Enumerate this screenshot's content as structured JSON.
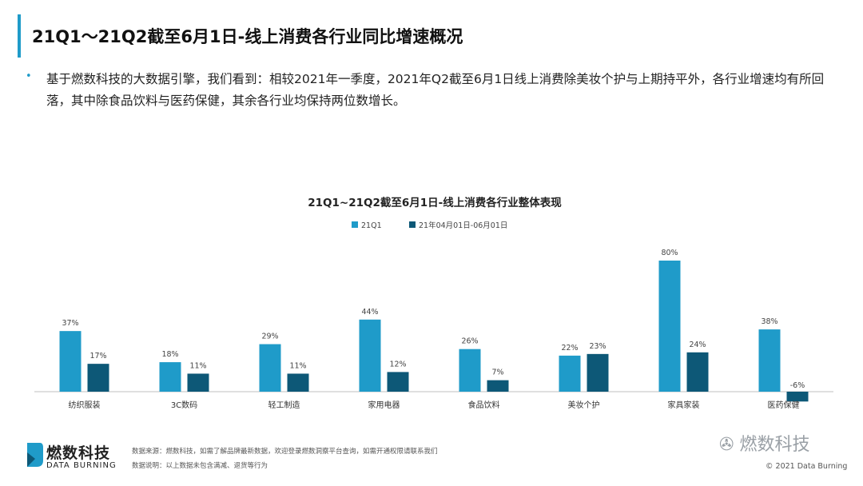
{
  "header": {
    "title": "21Q1～21Q2截至6月1日-线上消费各行业同比增速概况"
  },
  "bullet": {
    "text": "基于燃数科技的大数据引擎，我们看到：相较2021年一季度，2021年Q2截至6月1日线上消费除美妆个护与上期持平外，各行业增速均有所回落，其中除食品饮料与医药保健，其余各行业均保持两位数增长。"
  },
  "colors": {
    "accent": "#1f9bc9",
    "series1": "#1f9bc9",
    "series2": "#0d5877"
  },
  "chart_data": {
    "type": "bar",
    "title": "21Q1~21Q2截至6月1日-线上消费各行业整体表现",
    "categories": [
      "纺织服装",
      "3C数码",
      "轻工制造",
      "家用电器",
      "食品饮料",
      "美妆个护",
      "家具家装",
      "医药保健"
    ],
    "series": [
      {
        "name": "21Q1",
        "values": [
          37,
          18,
          29,
          44,
          26,
          22,
          80,
          38
        ],
        "labels": [
          "37%",
          "18%",
          "29%",
          "44%",
          "26%",
          "22%",
          "80%",
          "38%"
        ]
      },
      {
        "name": "21年04月01日-06月01日",
        "values": [
          17,
          11,
          11,
          12,
          7,
          23,
          24,
          -6
        ],
        "labels": [
          "17%",
          "11%",
          "11%",
          "12%",
          "7%",
          "23%",
          "24%",
          "-6%"
        ]
      }
    ],
    "unit": "%",
    "legend_position": "top-center",
    "grid": false
  },
  "footer": {
    "logo_name": "燃数科技",
    "logo_sub": "DATA BURNING",
    "source_line1": "数据来源：燃数科技，如需了解品牌最新数据，欢迎登录燃数洞察平台查询，如需开通权限请联系我们",
    "source_line2": "数据说明：以上数据未包含满减、退货等行为",
    "watermark": "燃数科技",
    "copyright": "© 2021 Data Burning"
  }
}
